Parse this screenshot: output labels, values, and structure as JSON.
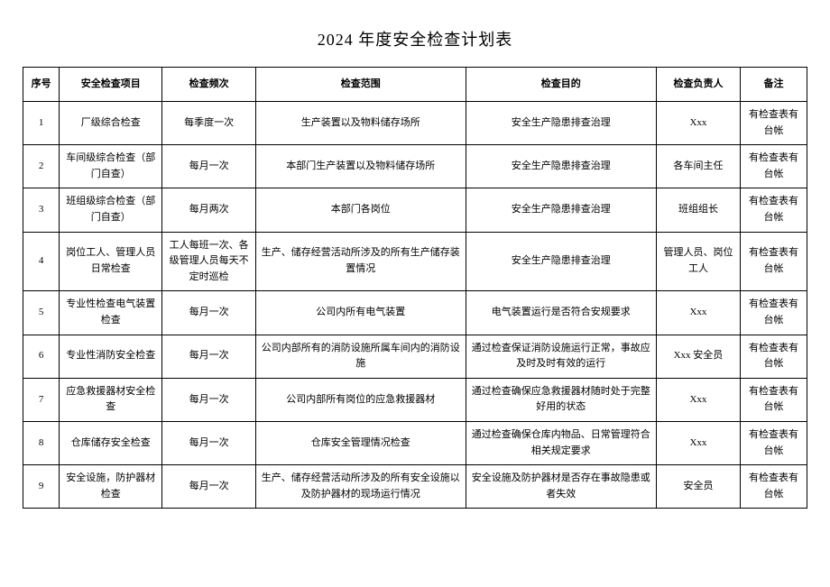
{
  "title": "2024 年度安全检查计划表",
  "table": {
    "columns": [
      "序号",
      "安全检查项目",
      "检查频次",
      "检查范围",
      "检查目的",
      "检查负责人",
      "备注"
    ],
    "rows": [
      {
        "seq": "1",
        "item": "厂级综合检查",
        "freq": "每季度一次",
        "scope": "生产装置以及物料储存场所",
        "purpose": "安全生产隐患排查治理",
        "person": "Xxx",
        "remark": "有检查表有台帐"
      },
      {
        "seq": "2",
        "item": "车间级综合检查（部门自查）",
        "freq": "每月一次",
        "scope": "本部门生产装置以及物料储存场所",
        "purpose": "安全生产隐患排查治理",
        "person": "各车间主任",
        "remark": "有检查表有台帐"
      },
      {
        "seq": "3",
        "item": "班组级综合检查（部门自查）",
        "freq": "每月两次",
        "scope": "本部门各岗位",
        "purpose": "安全生产隐患排查治理",
        "person": "班组组长",
        "remark": "有检查表有台帐"
      },
      {
        "seq": "4",
        "item": "岗位工人、管理人员日常检查",
        "freq": "工人每班一次、各级管理人员每天不定时巡检",
        "scope": "生产、储存经营活动所涉及的所有生产储存装置情况",
        "purpose": "安全生产隐患排查治理",
        "person": "管理人员、岗位工人",
        "remark": "有检查表有台帐"
      },
      {
        "seq": "5",
        "item": "专业性检查电气装置检查",
        "freq": "每月一次",
        "scope": "公司内所有电气装置",
        "purpose": "电气装置运行是否符合安规要求",
        "person": "Xxx",
        "remark": "有检查表有台帐"
      },
      {
        "seq": "6",
        "item": "专业性消防安全检查",
        "freq": "每月一次",
        "scope": "公司内部所有的消防设施所属车间内的消防设施",
        "purpose": "通过检查保证消防设施运行正常，事故应及时及时有效的运行",
        "person": "Xxx 安全员",
        "remark": "有检查表有台帐"
      },
      {
        "seq": "7",
        "item": "应急救援器材安全检查",
        "freq": "每月一次",
        "scope": "公司内部所有岗位的应急救援器材",
        "purpose": "通过检查确保应急救援器材随时处于完整好用的状态",
        "person": "Xxx",
        "remark": "有检查表有台帐"
      },
      {
        "seq": "8",
        "item": "仓库储存安全检查",
        "freq": "每月一次",
        "scope": "仓库安全管理情况检查",
        "purpose": "通过检查确保仓库内物品、日常管理符合相关规定要求",
        "person": "Xxx",
        "remark": "有检查表有台帐"
      },
      {
        "seq": "9",
        "item": "安全设施，防护器材检查",
        "freq": "每月一次",
        "scope": "生产、储存经营活动所涉及的所有安全设施以及防护器材的现场运行情况",
        "purpose": "安全设施及防护器材是否存在事故隐患或者失效",
        "person": "安全员",
        "remark": "有检查表有台帐"
      }
    ]
  }
}
